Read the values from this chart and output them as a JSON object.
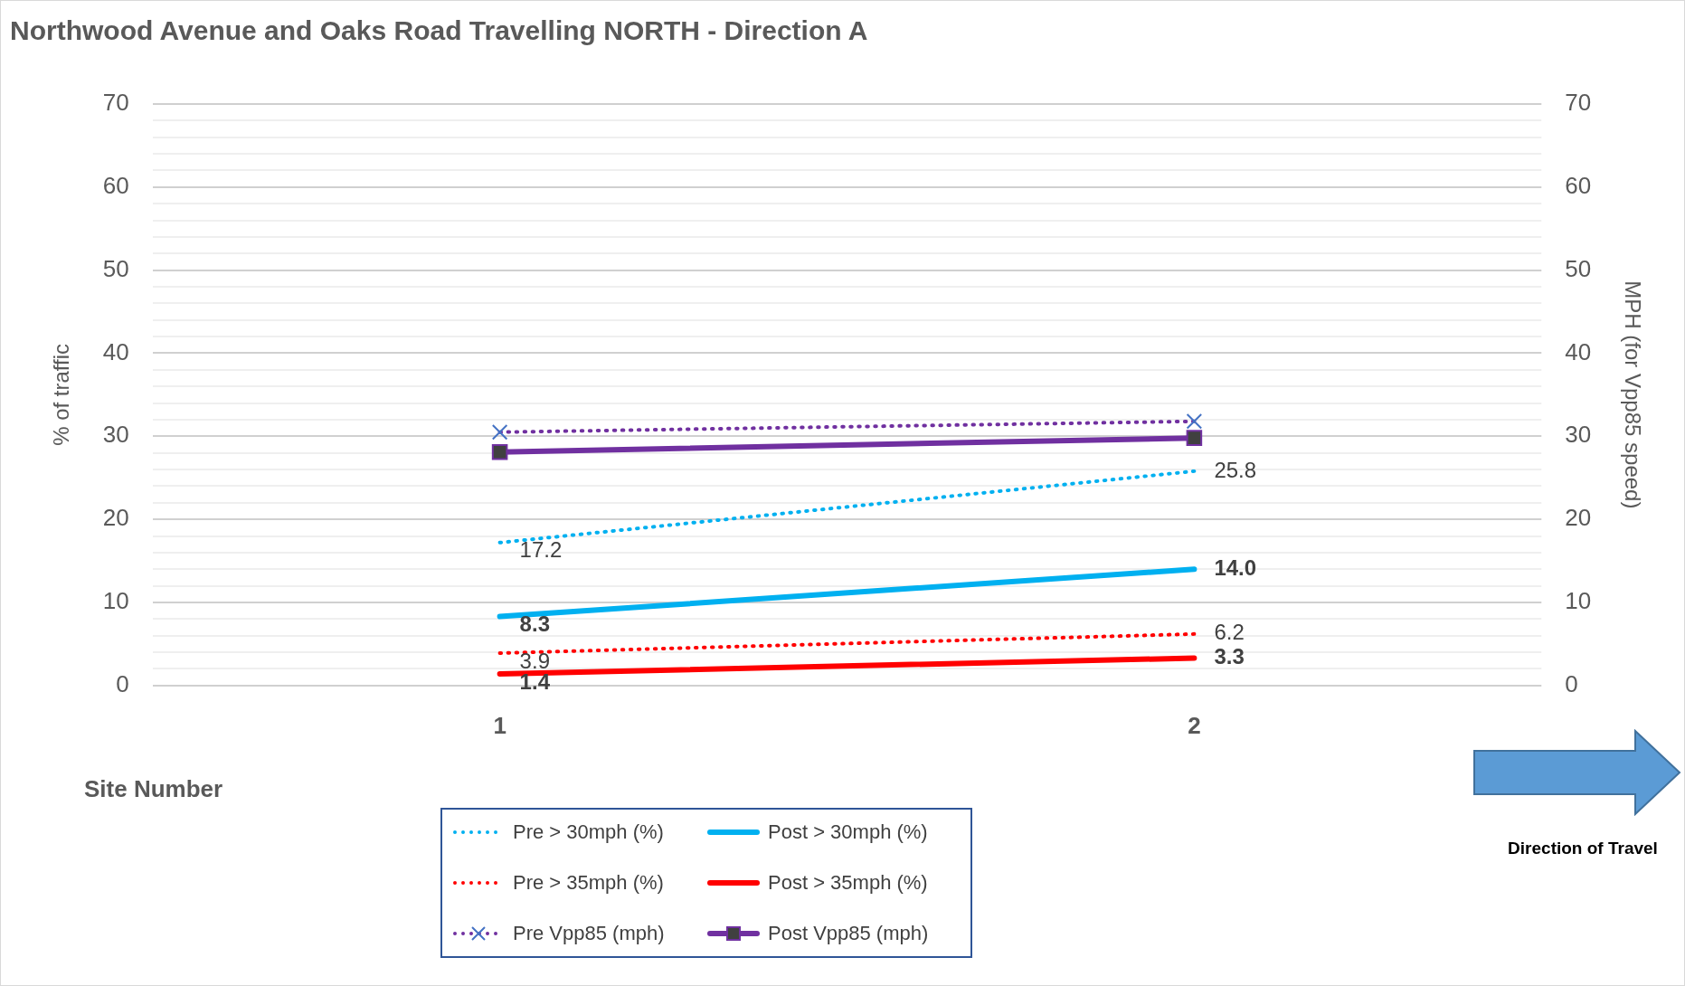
{
  "chart_data": {
    "type": "line",
    "title": "Northwood Avenue and Oaks Road Travelling NORTH - Direction A",
    "xlabel": "Site Number",
    "ylabel": "% of traffic",
    "y2label": "MPH (for Vpp85 speed)",
    "categories": [
      "1",
      "2"
    ],
    "series": [
      {
        "name": "Pre > 30mph (%)",
        "color": "#00b0f0",
        "values": [
          17.2,
          25.8
        ],
        "line_style": "dotted",
        "marker": "none",
        "value_labels": [
          "17.2",
          "25.8"
        ]
      },
      {
        "name": "Post > 30mph (%)",
        "color": "#00b0f0",
        "values": [
          8.3,
          14.0
        ],
        "line_style": "solid",
        "marker": "none",
        "value_labels": [
          "8.3",
          "14.0"
        ]
      },
      {
        "name": "Pre > 35mph (%)",
        "color": "#ff0000",
        "values": [
          3.9,
          6.2
        ],
        "line_style": "dotted",
        "marker": "none",
        "value_labels": [
          "3.9",
          "6.2"
        ]
      },
      {
        "name": "Post > 35mph (%)",
        "color": "#ff0000",
        "values": [
          1.4,
          3.3
        ],
        "line_style": "solid",
        "marker": "none",
        "value_labels": [
          "1.4",
          "3.3"
        ]
      },
      {
        "name": "Pre Vpp85 (mph)",
        "color": "#7030a0",
        "values": [
          30.5,
          31.8
        ],
        "line_style": "dotted",
        "marker": "cross",
        "axis": "y2"
      },
      {
        "name": "Post Vpp85 (mph)",
        "color": "#7030a0",
        "values": [
          28.1,
          29.8
        ],
        "line_style": "solid",
        "marker": "square",
        "axis": "y2"
      }
    ],
    "ylim": [
      0,
      70
    ],
    "yticks": [
      0,
      {
        "value": 2,
        "label": null
      },
      {
        "value": 4,
        "label": null
      },
      {
        "value": 6,
        "label": null
      },
      {
        "value": 8,
        "label": null
      },
      10,
      {
        "value": 12,
        "label": null
      },
      {
        "value": 14,
        "label": null
      },
      {
        "value": 16,
        "label": null
      },
      {
        "value": 18,
        "label": null
      },
      20,
      {
        "value": 22,
        "label": null
      },
      {
        "value": 24,
        "label": null
      },
      {
        "value": 26,
        "label": null
      },
      {
        "value": 28,
        "label": null
      },
      30,
      {
        "value": 32,
        "label": null
      },
      {
        "value": 34,
        "label": null
      },
      {
        "value": 36,
        "label": null
      },
      {
        "value": 38,
        "label": null
      },
      40,
      {
        "value": 42,
        "label": null
      },
      {
        "value": 44,
        "label": null
      },
      {
        "value": 46,
        "label": null
      },
      {
        "value": 48,
        "label": null
      },
      50,
      {
        "value": 52,
        "label": null
      },
      {
        "value": 54,
        "label": null
      },
      {
        "value": 56,
        "label": null
      },
      {
        "value": 58,
        "label": null
      },
      60,
      {
        "value": 62,
        "label": null
      },
      {
        "value": 64,
        "label": null
      },
      {
        "value": 66,
        "label": null
      },
      {
        "value": 68,
        "label": null
      },
      70
    ],
    "y2lim": [
      0,
      70
    ],
    "y2ticks": [
      0,
      10,
      20,
      30,
      40,
      50,
      60,
      70
    ],
    "grid": "y",
    "legend": "bottom",
    "annotations": [
      "Direction of Travel"
    ]
  }
}
